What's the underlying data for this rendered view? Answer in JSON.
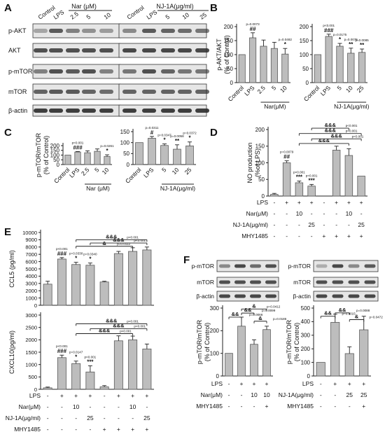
{
  "colors": {
    "bar": "#bdbdbd",
    "edge": "#5a5a5a",
    "err": "#555555",
    "blot_bg": "#e6e6e6",
    "band": "#2b2b2b",
    "text": "#111111"
  },
  "panel_letters": [
    "A",
    "B",
    "C",
    "D",
    "E",
    "F"
  ],
  "blots": {
    "A_group_nar": [
      "Control",
      "LPS",
      "2.5",
      "5",
      "10"
    ],
    "A_group_nj": [
      "Control",
      "LPS",
      "5",
      "10",
      "25"
    ],
    "A_header_nar": "Nar (μM)",
    "A_header_nj": "NJ-1A(μg/ml)",
    "A_rows": [
      "p-AKT",
      "AKT",
      "p-mTOR",
      "mTOR",
      "β-actin"
    ],
    "F_rows": [
      "p-mTOR",
      "mTOR",
      "β-actin"
    ]
  },
  "chart_data": [
    {
      "id": "B_left",
      "type": "bar",
      "ylabel": "p-AKT/AKT\n(% of Control)",
      "ylim": [
        0,
        200
      ],
      "yticks": [
        0,
        50,
        100,
        150,
        200
      ],
      "categories": [
        "Control",
        "LPS",
        "2.5",
        "5",
        "10"
      ],
      "group_label": "Nar(μM)",
      "values": [
        100,
        160,
        130,
        122,
        102
      ],
      "errors": [
        0,
        18,
        22,
        22,
        20
      ],
      "annotations": [
        {
          "bar": 1,
          "text": "##",
          "p": "p=0.0073"
        },
        {
          "bar": 4,
          "text": "*",
          "p": "p=0.0482"
        }
      ]
    },
    {
      "id": "B_right",
      "type": "bar",
      "ylim": [
        0,
        200
      ],
      "yticks": [
        0,
        50,
        100,
        150,
        200
      ],
      "categories": [
        "Control",
        "LPS",
        "5",
        "10",
        "25"
      ],
      "group_label": "NJ-1A(μg/ml)",
      "values": [
        100,
        165,
        130,
        105,
        108
      ],
      "errors": [
        0,
        8,
        10,
        18,
        12
      ],
      "annotations": [
        {
          "bar": 1,
          "text": "###",
          "p": "p<0.001"
        },
        {
          "bar": 2,
          "text": "*",
          "p": "p=0.0175"
        },
        {
          "bar": 3,
          "text": "**",
          "p": "p=0.0075"
        },
        {
          "bar": 4,
          "text": "**",
          "p": "p=0.0085"
        }
      ]
    },
    {
      "id": "C_left",
      "type": "bar",
      "ylabel": "p-mTOR/mTOR\n(% of Control)",
      "ylim": [
        0,
        200
      ],
      "yticks": [
        0,
        50,
        100,
        150,
        200
      ],
      "categories": [
        "Control",
        "LPS",
        "2.5",
        "5",
        "10"
      ],
      "group_label": "Nar (μM)",
      "values": [
        100,
        133,
        125,
        140,
        85
      ],
      "errors": [
        0,
        5,
        20,
        25,
        18
      ],
      "annotations": [
        {
          "bar": 1,
          "text": "###",
          "p": "p<0.001"
        },
        {
          "bar": 4,
          "text": "*",
          "p": "p=0.0261"
        }
      ]
    },
    {
      "id": "C_right",
      "type": "bar",
      "ylim": [
        0,
        150
      ],
      "yticks": [
        0,
        50,
        100,
        150
      ],
      "categories": [
        "Control",
        "LPS",
        "5",
        "10",
        "25"
      ],
      "group_label": "NJ-1A(μg/ml)",
      "values": [
        100,
        120,
        87,
        70,
        85
      ],
      "errors": [
        0,
        8,
        7,
        20,
        18
      ],
      "annotations": [
        {
          "bar": 1,
          "text": "#",
          "p": "p=0.0311"
        },
        {
          "bar": 2,
          "text": "*",
          "p": "p=0.0347"
        },
        {
          "bar": 3,
          "text": "**",
          "p": "p=0.0058"
        },
        {
          "bar": 4,
          "text": "*",
          "p": "p=0.0372"
        }
      ]
    },
    {
      "id": "D",
      "type": "bar",
      "ylabel": "NO production\n(%of LPS)",
      "ylim": [
        0,
        200
      ],
      "yticks": [
        0,
        50,
        100,
        150,
        200
      ],
      "values": [
        5,
        100,
        40,
        30,
        0,
        138,
        122,
        60
      ],
      "errors": [
        3,
        6,
        5,
        5,
        0,
        12,
        20,
        0
      ],
      "annotations": [
        {
          "bar": 1,
          "text": "##",
          "p": "p=0.0079"
        },
        {
          "bar": 2,
          "text": "***",
          "p": "p<0.001"
        },
        {
          "bar": 3,
          "text": "***",
          "p": "p<0.001"
        }
      ],
      "brackets": [
        {
          "from": 2,
          "to": 6,
          "y": 158,
          "text": "&&&"
        },
        {
          "from": 3,
          "to": 7,
          "y": 172,
          "text": "&&&",
          "p": "p<0.001"
        },
        {
          "from": 2,
          "to": 7,
          "y": 188,
          "text": "&&&",
          "p": "p<0.001"
        },
        {
          "from": 3,
          "to": 6,
          "y": 204,
          "text": "&&&",
          "p": "p<0.001"
        }
      ],
      "conditions": [
        {
          "label": "LPS",
          "marks": [
            "-",
            "+",
            "+",
            "+",
            "-",
            "+",
            "+",
            "+"
          ]
        },
        {
          "label": "Nar(μM)",
          "marks": [
            "-",
            "-",
            "10",
            "-",
            "-",
            "-",
            "10",
            "-"
          ]
        },
        {
          "label": "NJ-1A(μg/ml)",
          "marks": [
            "-",
            "-",
            "-",
            "25",
            "-",
            "-",
            "-",
            "25"
          ]
        },
        {
          "label": "MHY1485",
          "marks": [
            "-",
            "-",
            "-",
            "-",
            "+",
            "+",
            "+",
            "+"
          ]
        }
      ]
    },
    {
      "id": "E_top",
      "type": "bar",
      "ylabel": "CCL5 (pg/ml)",
      "ylim": [
        0,
        10000
      ],
      "yticks": [
        0,
        1000,
        2000,
        3000,
        4000,
        5000,
        6000,
        7000,
        8000,
        9000,
        10000
      ],
      "values": [
        2900,
        6350,
        5600,
        5500,
        3200,
        7100,
        7400,
        7600
      ],
      "errors": [
        400,
        200,
        300,
        300,
        100,
        300,
        500,
        400
      ],
      "annotations": [
        {
          "bar": 1,
          "text": "###",
          "p": "p<0.001"
        },
        {
          "bar": 2,
          "text": "*",
          "p": "p=0.0330"
        },
        {
          "bar": 3,
          "text": "*",
          "p": "p=0.0340"
        }
      ],
      "brackets": [
        {
          "from": 2,
          "to": 6,
          "y": 8100,
          "text": "&",
          "p": "p=0.0112"
        },
        {
          "from": 3,
          "to": 7,
          "y": 8550,
          "text": "&&&",
          "p": "p<0.001"
        },
        {
          "from": 2,
          "to": 7,
          "y": 9000,
          "text": "&&&",
          "p": "p<0.001"
        }
      ]
    },
    {
      "id": "E_bottom",
      "type": "bar",
      "ylabel": "CXCL10(pg/ml)",
      "ylim": [
        0,
        3000
      ],
      "yticks": [
        0,
        500,
        1000,
        1500,
        2000,
        2500,
        3000
      ],
      "values": [
        60,
        1280,
        1040,
        700,
        100,
        1960,
        2000,
        1630
      ],
      "errors": [
        30,
        100,
        100,
        250,
        50,
        200,
        150,
        200
      ],
      "annotations": [
        {
          "bar": 1,
          "text": "###",
          "p": "p<0.001"
        },
        {
          "bar": 2,
          "text": "*",
          "p": "p=0.0147"
        },
        {
          "bar": 3,
          "text": "***",
          "p": "p<0.001"
        }
      ],
      "brackets": [
        {
          "from": 2,
          "to": 6,
          "y": 2250,
          "text": "&&&",
          "p": "p<0.001"
        },
        {
          "from": 3,
          "to": 7,
          "y": 2450,
          "text": "&&&",
          "p": "p<0.001"
        },
        {
          "from": 2,
          "to": 7,
          "y": 2650,
          "text": "&&&",
          "p": "p<0.001"
        }
      ],
      "conditions": [
        {
          "label": "LPS",
          "marks": [
            "-",
            "+",
            "+",
            "+",
            "-",
            "+",
            "+",
            "+"
          ]
        },
        {
          "label": "Nar(μM)",
          "marks": [
            "-",
            "-",
            "10",
            "-",
            "-",
            "-",
            "10",
            "-"
          ]
        },
        {
          "label": "NJ-1A(μg/ml)",
          "marks": [
            "-",
            "-",
            "-",
            "25",
            "-",
            "-",
            "-",
            "25"
          ]
        },
        {
          "label": "MHY1485",
          "marks": [
            "-",
            "-",
            "-",
            "-",
            "+",
            "+",
            "+",
            "+"
          ]
        }
      ]
    },
    {
      "id": "F_left",
      "type": "bar",
      "ylabel": "p-mTOR/mTOR\n(% of Control)",
      "ylim": [
        0,
        300
      ],
      "yticks": [
        0,
        100,
        200,
        300
      ],
      "values": [
        100,
        220,
        140,
        205
      ],
      "errors": [
        0,
        40,
        20,
        15
      ],
      "brackets": [
        {
          "from": 0,
          "to": 1,
          "y": 260,
          "text": "&&",
          "p": "p=0.0066"
        },
        {
          "from": 1,
          "to": 2,
          "y": 278,
          "text": "&&",
          "p": "p=0.0099"
        },
        {
          "from": 1,
          "to": 3,
          "y": 296,
          "text": "&",
          "p": "p=0.0412"
        },
        {
          "from": 2,
          "to": 3,
          "y": 242,
          "text": "&",
          "p": "p=0.0185"
        }
      ],
      "conditions": [
        {
          "label": "LPS",
          "marks": [
            "-",
            "+",
            "+",
            "+"
          ]
        },
        {
          "label": "Nar(μM)",
          "marks": [
            "-",
            "-",
            "10",
            "10"
          ]
        },
        {
          "label": "MHY1485",
          "marks": [
            "-",
            "-",
            "-",
            "+"
          ]
        }
      ]
    },
    {
      "id": "F_right",
      "type": "bar",
      "ylabel": "p-mTOR/mTOR\n(% of Control)",
      "ylim": [
        0,
        500
      ],
      "yticks": [
        0,
        100,
        200,
        300,
        400,
        500
      ],
      "values": [
        100,
        395,
        165,
        340
      ],
      "errors": [
        0,
        60,
        50,
        100
      ],
      "brackets": [
        {
          "from": 0,
          "to": 1,
          "y": 440,
          "text": "&&",
          "p": "p=0.0015"
        },
        {
          "from": 1,
          "to": 2,
          "y": 465,
          "text": "&&",
          "p": "p=0.0088"
        },
        {
          "from": 2,
          "to": 3,
          "y": 415,
          "text": "&",
          "p": "p=0.0472"
        }
      ],
      "conditions": [
        {
          "label": "LPS",
          "marks": [
            "-",
            "+",
            "+",
            "+"
          ]
        },
        {
          "label": "NJ-1A(μg/ml)",
          "marks": [
            "-",
            "-",
            "25",
            "25"
          ]
        },
        {
          "label": "MHY1485",
          "marks": [
            "-",
            "-",
            "-",
            "+"
          ]
        }
      ]
    }
  ]
}
